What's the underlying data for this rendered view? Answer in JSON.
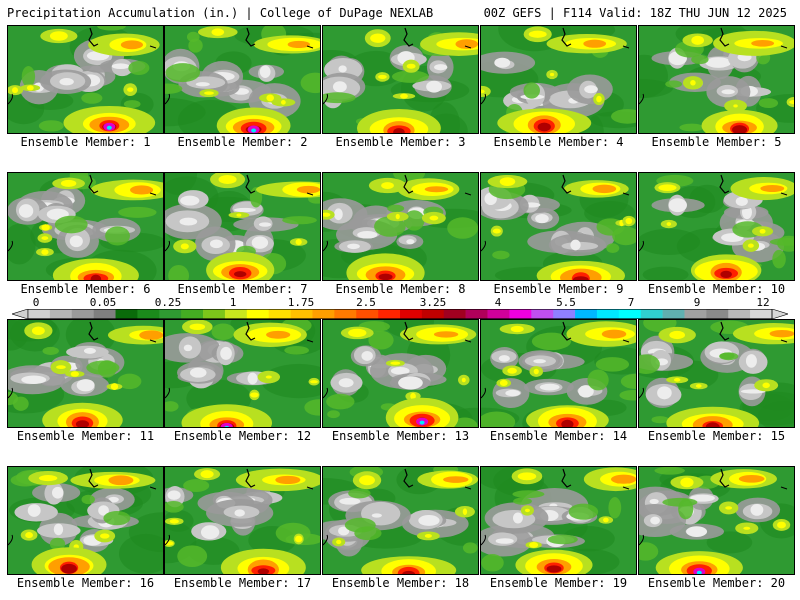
{
  "header": {
    "left": "Precipitation Accumulation (in.) | College of DuPage NEXLAB",
    "right": "00Z GEFS | F114 Valid: 18Z THU JUN 12 2025"
  },
  "caption_prefix": "Ensemble Member:",
  "members": [
    {
      "id": 1,
      "label": "Ensemble Member: 1"
    },
    {
      "id": 2,
      "label": "Ensemble Member: 2"
    },
    {
      "id": 3,
      "label": "Ensemble Member: 3"
    },
    {
      "id": 4,
      "label": "Ensemble Member: 4"
    },
    {
      "id": 5,
      "label": "Ensemble Member: 5"
    },
    {
      "id": 6,
      "label": "Ensemble Member: 6"
    },
    {
      "id": 7,
      "label": "Ensemble Member: 7"
    },
    {
      "id": 8,
      "label": "Ensemble Member: 8"
    },
    {
      "id": 9,
      "label": "Ensemble Member: 9"
    },
    {
      "id": 10,
      "label": "Ensemble Member: 10"
    },
    {
      "id": 11,
      "label": "Ensemble Member: 11"
    },
    {
      "id": 12,
      "label": "Ensemble Member: 12"
    },
    {
      "id": 13,
      "label": "Ensemble Member: 13"
    },
    {
      "id": 14,
      "label": "Ensemble Member: 14"
    },
    {
      "id": 15,
      "label": "Ensemble Member: 15"
    },
    {
      "id": 16,
      "label": "Ensemble Member: 16"
    },
    {
      "id": 17,
      "label": "Ensemble Member: 17"
    },
    {
      "id": 18,
      "label": "Ensemble Member: 18"
    },
    {
      "id": 19,
      "label": "Ensemble Member: 19"
    },
    {
      "id": 20,
      "label": "Ensemble Member: 20"
    }
  ],
  "colorbar": {
    "labels": [
      "0",
      "0.05",
      "0.25",
      "1",
      "1.75",
      "2.5",
      "3.25",
      "4",
      "5.5",
      "7",
      "9",
      "12"
    ],
    "colors": [
      "#cfcfcf",
      "#b5b5b5",
      "#9a9a9a",
      "#7f7f7f",
      "#0a6b0a",
      "#1b8a1b",
      "#2f9a32",
      "#44ad22",
      "#7cc61a",
      "#c8e61e",
      "#ffff00",
      "#ffe000",
      "#ffc000",
      "#ff9f00",
      "#ff7a00",
      "#ff5000",
      "#ff2400",
      "#e00000",
      "#c00000",
      "#a00020",
      "#b0005a",
      "#d0009a",
      "#f000e0",
      "#c050f0",
      "#9080ff",
      "#00b8ff",
      "#00e8ff",
      "#00ffff",
      "#30d0d0",
      "#60b0b0",
      "#a0a0a0",
      "#8a8a8a",
      "#b8b8b8",
      "#d8d8d8"
    ]
  },
  "field_colors": {
    "dry_light": "#ededed",
    "dry_mid": "#c6c6c6",
    "dry_dark": "#9a9a9a",
    "green_dark": "#1f8a1f",
    "green": "#2f9a32",
    "green_light": "#55b82a",
    "yellow_green": "#b8e020",
    "yellow": "#ffff00",
    "orange": "#ff9f00",
    "red": "#ff2000",
    "dark_red": "#b00000",
    "magenta": "#e000c8",
    "cyan": "#00e8ff",
    "coastline": "#000000"
  }
}
